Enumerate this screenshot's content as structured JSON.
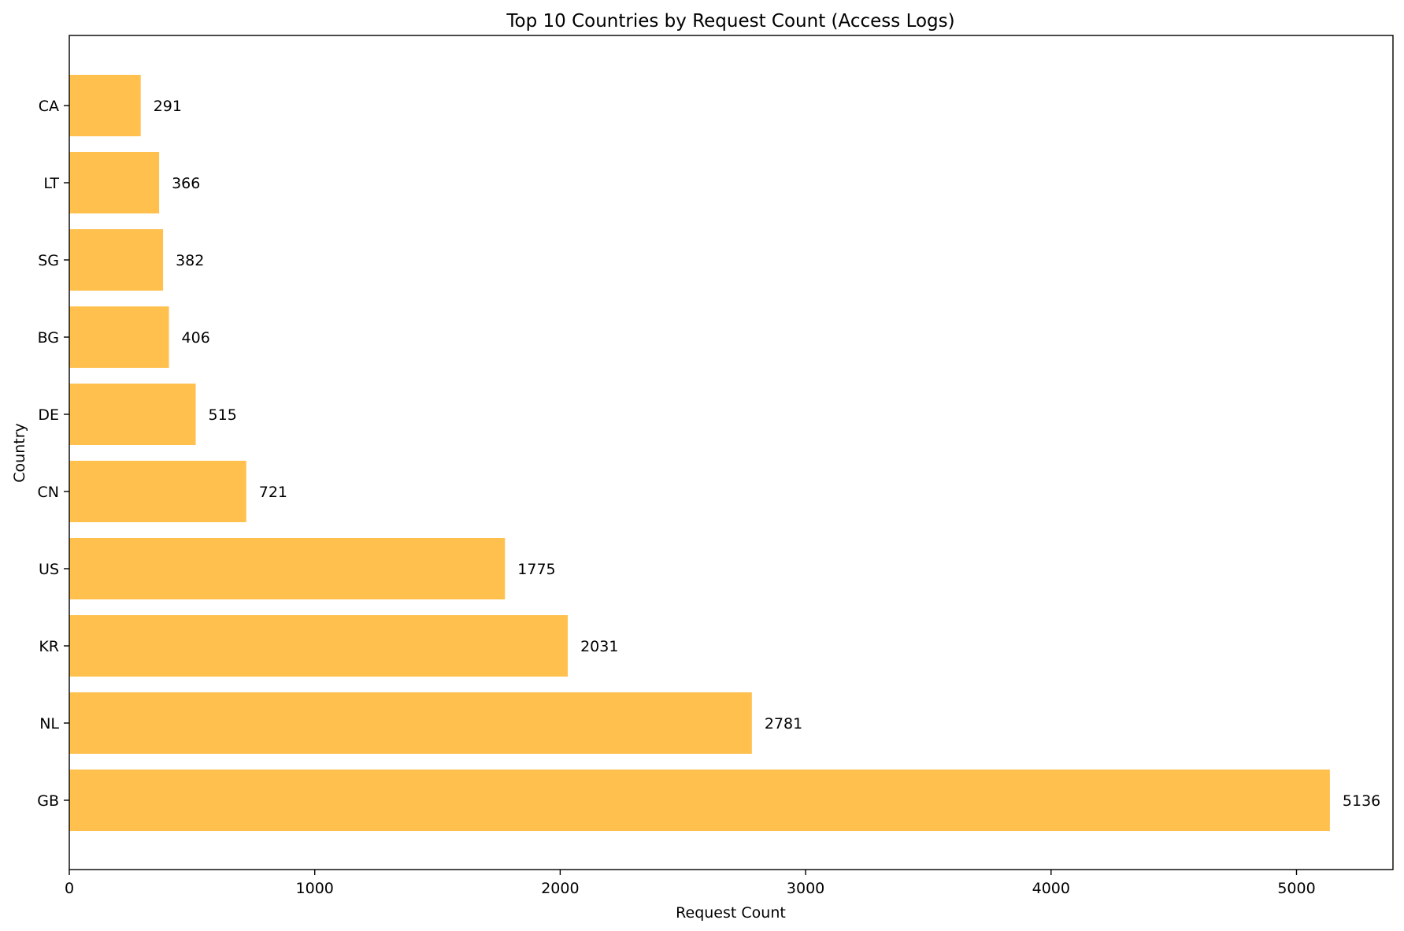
{
  "chart_data": {
    "type": "bar",
    "orientation": "horizontal",
    "title": "Top 10 Countries by Request Count (Access Logs)",
    "xlabel": "Request Count",
    "ylabel": "Country",
    "categories": [
      "GB",
      "NL",
      "KR",
      "US",
      "CN",
      "DE",
      "BG",
      "SG",
      "LT",
      "CA"
    ],
    "values": [
      5136,
      2781,
      2031,
      1775,
      721,
      515,
      406,
      382,
      366,
      291
    ],
    "value_labels": [
      "5136",
      "2781",
      "2031",
      "1775",
      "721",
      "515",
      "406",
      "382",
      "366",
      "291"
    ],
    "xlim": [
      0,
      5393
    ],
    "xticks": [
      0,
      1000,
      2000,
      3000,
      4000,
      5000
    ],
    "xtick_labels": [
      "0",
      "1000",
      "2000",
      "3000",
      "4000",
      "5000"
    ],
    "bar_color": "#FFC04D",
    "grid": false,
    "legend": "none"
  }
}
